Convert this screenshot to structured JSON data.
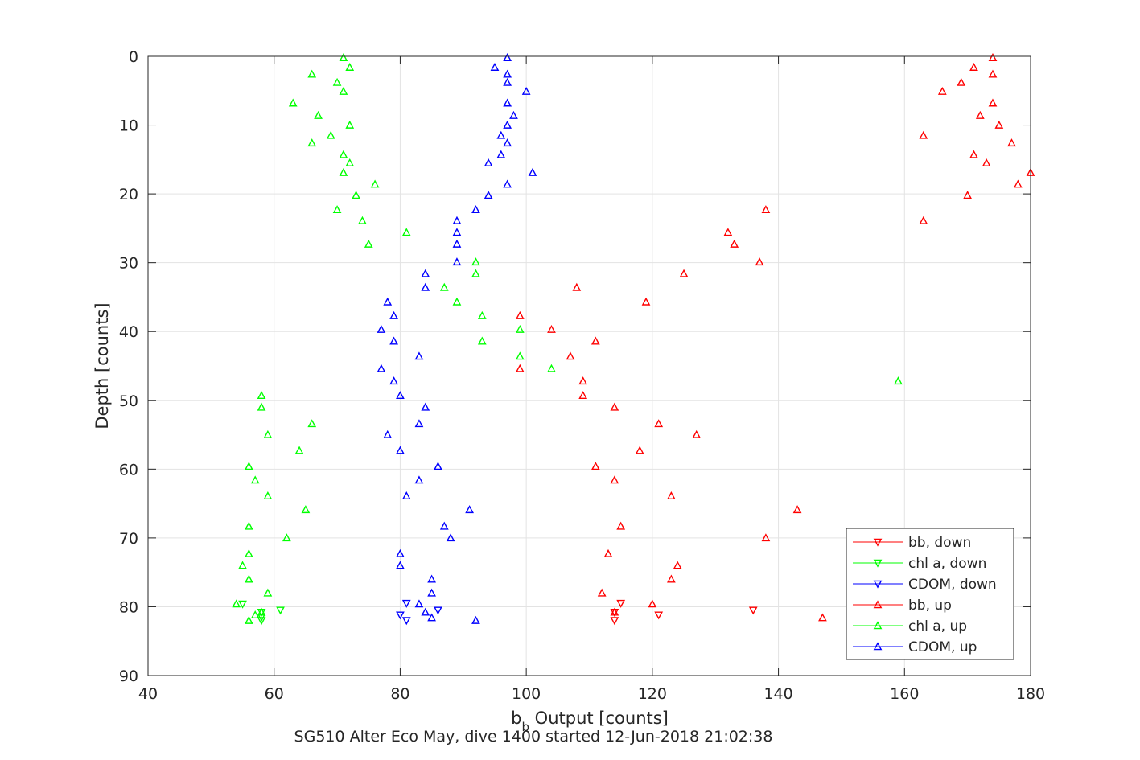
{
  "chart_data": {
    "type": "scatter",
    "title": "SG510 Alter Eco May, dive 1400 started 12-Jun-2018 21:02:38",
    "xlabel": {
      "main": "b",
      "sub": "b",
      "rest": " Output [counts]"
    },
    "ylabel": "Depth [counts]",
    "xlim": [
      40,
      180
    ],
    "ylim": [
      0,
      90
    ],
    "y_reversed": true,
    "xticks": [
      40,
      60,
      80,
      100,
      120,
      140,
      160,
      180
    ],
    "yticks": [
      0,
      10,
      20,
      30,
      40,
      50,
      60,
      70,
      80,
      90
    ],
    "grid": true,
    "legend_position": "bottom-right",
    "series": [
      {
        "name": "bb, down",
        "color": "#ff0000",
        "marker": "triangle-down",
        "points": [
          [
            115,
            79.5
          ],
          [
            114,
            80.8
          ],
          [
            114,
            82
          ],
          [
            121,
            81.2
          ],
          [
            136,
            80.5
          ]
        ]
      },
      {
        "name": "chl a, down",
        "color": "#00ff00",
        "marker": "triangle-down",
        "points": [
          [
            55,
            79.6
          ],
          [
            58,
            80.8
          ],
          [
            58,
            81.5
          ],
          [
            58,
            82
          ],
          [
            61,
            80.5
          ]
        ]
      },
      {
        "name": "CDOM, down",
        "color": "#0000ff",
        "marker": "triangle-down",
        "points": [
          [
            81,
            79.5
          ],
          [
            80,
            81.2
          ],
          [
            81,
            82
          ],
          [
            86,
            80.5
          ]
        ]
      },
      {
        "name": "bb, up",
        "color": "#ff0000",
        "marker": "triangle-up",
        "points": [
          [
            174,
            0.2
          ],
          [
            171,
            1.6
          ],
          [
            174,
            2.6
          ],
          [
            169,
            3.8
          ],
          [
            166,
            5.1
          ],
          [
            174,
            6.8
          ],
          [
            172,
            8.6
          ],
          [
            175,
            10
          ],
          [
            163,
            11.5
          ],
          [
            177,
            12.6
          ],
          [
            171,
            14.3
          ],
          [
            173,
            15.5
          ],
          [
            180,
            16.9
          ],
          [
            178,
            18.6
          ],
          [
            170,
            20.2
          ],
          [
            138,
            22.3
          ],
          [
            163,
            23.9
          ],
          [
            132,
            25.6
          ],
          [
            133,
            27.3
          ],
          [
            137,
            29.9
          ],
          [
            125,
            31.6
          ],
          [
            108,
            33.6
          ],
          [
            119,
            35.7
          ],
          [
            99,
            37.7
          ],
          [
            104,
            39.7
          ],
          [
            111,
            41.4
          ],
          [
            107,
            43.6
          ],
          [
            99,
            45.4
          ],
          [
            109,
            47.2
          ],
          [
            109,
            49.3
          ],
          [
            114,
            51
          ],
          [
            121,
            53.4
          ],
          [
            127,
            55
          ],
          [
            118,
            57.3
          ],
          [
            111,
            59.6
          ],
          [
            114,
            61.6
          ],
          [
            123,
            63.9
          ],
          [
            143,
            65.9
          ],
          [
            115,
            68.3
          ],
          [
            138,
            70
          ],
          [
            113,
            72.3
          ],
          [
            124,
            74
          ],
          [
            123,
            76
          ],
          [
            112,
            78
          ],
          [
            120,
            79.6
          ],
          [
            114,
            80.8
          ],
          [
            147,
            81.6
          ]
        ]
      },
      {
        "name": "chl a, up",
        "color": "#00ff00",
        "marker": "triangle-up",
        "points": [
          [
            71,
            0.2
          ],
          [
            72,
            1.6
          ],
          [
            66,
            2.6
          ],
          [
            70,
            3.8
          ],
          [
            71,
            5.1
          ],
          [
            63,
            6.8
          ],
          [
            67,
            8.6
          ],
          [
            72,
            10
          ],
          [
            69,
            11.5
          ],
          [
            66,
            12.6
          ],
          [
            71,
            14.3
          ],
          [
            72,
            15.5
          ],
          [
            71,
            16.9
          ],
          [
            76,
            18.6
          ],
          [
            73,
            20.2
          ],
          [
            70,
            22.3
          ],
          [
            74,
            23.9
          ],
          [
            81,
            25.6
          ],
          [
            75,
            27.3
          ],
          [
            92,
            29.9
          ],
          [
            92,
            31.6
          ],
          [
            87,
            33.6
          ],
          [
            89,
            35.7
          ],
          [
            93,
            37.7
          ],
          [
            99,
            39.7
          ],
          [
            93,
            41.4
          ],
          [
            99,
            43.6
          ],
          [
            104,
            45.4
          ],
          [
            159,
            47.2
          ],
          [
            58,
            49.3
          ],
          [
            58,
            51
          ],
          [
            66,
            53.4
          ],
          [
            59,
            55
          ],
          [
            64,
            57.3
          ],
          [
            56,
            59.6
          ],
          [
            57,
            61.6
          ],
          [
            59,
            63.9
          ],
          [
            65,
            65.9
          ],
          [
            56,
            68.3
          ],
          [
            62,
            70
          ],
          [
            56,
            72.3
          ],
          [
            55,
            74
          ],
          [
            56,
            76
          ],
          [
            59,
            78
          ],
          [
            54,
            79.6
          ],
          [
            57,
            81.2
          ],
          [
            58,
            80.8
          ],
          [
            56,
            82
          ]
        ]
      },
      {
        "name": "CDOM, up",
        "color": "#0000ff",
        "marker": "triangle-up",
        "points": [
          [
            97,
            0.2
          ],
          [
            95,
            1.6
          ],
          [
            97,
            2.6
          ],
          [
            97,
            3.8
          ],
          [
            100,
            5.1
          ],
          [
            97,
            6.8
          ],
          [
            98,
            8.6
          ],
          [
            97,
            10
          ],
          [
            96,
            11.5
          ],
          [
            97,
            12.6
          ],
          [
            96,
            14.3
          ],
          [
            94,
            15.5
          ],
          [
            101,
            16.9
          ],
          [
            97,
            18.6
          ],
          [
            94,
            20.2
          ],
          [
            92,
            22.3
          ],
          [
            89,
            23.9
          ],
          [
            89,
            25.6
          ],
          [
            89,
            27.3
          ],
          [
            89,
            29.9
          ],
          [
            84,
            31.6
          ],
          [
            84,
            33.6
          ],
          [
            78,
            35.7
          ],
          [
            79,
            37.7
          ],
          [
            77,
            39.7
          ],
          [
            79,
            41.4
          ],
          [
            83,
            43.6
          ],
          [
            77,
            45.4
          ],
          [
            79,
            47.2
          ],
          [
            80,
            49.3
          ],
          [
            84,
            51
          ],
          [
            83,
            53.4
          ],
          [
            78,
            55
          ],
          [
            80,
            57.3
          ],
          [
            86,
            59.6
          ],
          [
            83,
            61.6
          ],
          [
            81,
            63.9
          ],
          [
            91,
            65.9
          ],
          [
            87,
            68.3
          ],
          [
            88,
            70
          ],
          [
            80,
            72.3
          ],
          [
            80,
            74
          ],
          [
            85,
            76
          ],
          [
            85,
            78
          ],
          [
            83,
            79.6
          ],
          [
            84,
            80.8
          ],
          [
            85,
            81.6
          ],
          [
            92,
            82
          ]
        ]
      }
    ]
  }
}
